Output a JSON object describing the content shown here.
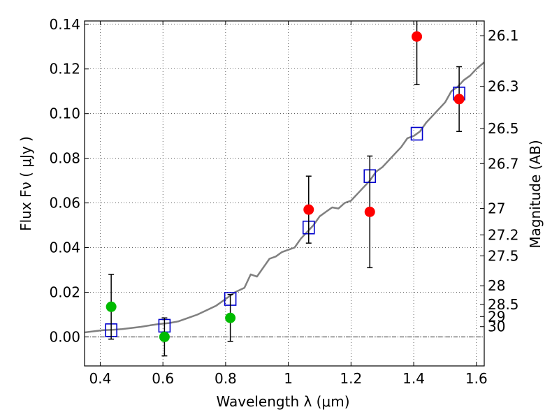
{
  "chart_data": {
    "type": "scatter",
    "xlabel": "Wavelength  λ (μm)",
    "ylabel": "Flux  Fν  ( μJy )",
    "y2label": "Magnitude (AB)",
    "xlim": [
      0.35,
      1.625
    ],
    "ylim": [
      -0.013,
      0.1415
    ],
    "x_ticks": [
      {
        "value": 0.4,
        "label": "0.4"
      },
      {
        "value": 0.6,
        "label": "0.6"
      },
      {
        "value": 0.8,
        "label": "0.8"
      },
      {
        "value": 1.0,
        "label": "1"
      },
      {
        "value": 1.2,
        "label": "1.2"
      },
      {
        "value": 1.4,
        "label": "1.4"
      },
      {
        "value": 1.6,
        "label": "1.6"
      }
    ],
    "y_ticks": [
      {
        "value": 0.0,
        "label": "0.00"
      },
      {
        "value": 0.02,
        "label": "0.02"
      },
      {
        "value": 0.04,
        "label": "0.04"
      },
      {
        "value": 0.06,
        "label": "0.06"
      },
      {
        "value": 0.08,
        "label": "0.08"
      },
      {
        "value": 0.1,
        "label": "0.10"
      },
      {
        "value": 0.12,
        "label": "0.12"
      },
      {
        "value": 0.14,
        "label": "0.14"
      }
    ],
    "y2_ticks": [
      {
        "flux": 0.1349,
        "label": "26.1"
      },
      {
        "flux": 0.1122,
        "label": "26.3"
      },
      {
        "flux": 0.0933,
        "label": "26.5"
      },
      {
        "flux": 0.0776,
        "label": "26.7"
      },
      {
        "flux": 0.0575,
        "label": "27"
      },
      {
        "flux": 0.0457,
        "label": "27.2"
      },
      {
        "flux": 0.0363,
        "label": "27.5"
      },
      {
        "flux": 0.0229,
        "label": "28"
      },
      {
        "flux": 0.0145,
        "label": "28.5"
      },
      {
        "flux": 0.0091,
        "label": "29"
      },
      {
        "flux": 0.0046,
        "label": "30"
      }
    ],
    "zero_line": 0.0,
    "grid": true,
    "colors": {
      "sed": "#808080",
      "model_marker": "#0000cc",
      "detection": "#ff0000",
      "nondetection": "#00bb00",
      "errorbar": "#000000"
    },
    "series": [
      {
        "style": "line",
        "x": [
          0.35,
          0.38,
          0.41,
          0.44,
          0.47,
          0.5,
          0.53,
          0.56,
          0.59,
          0.62,
          0.65,
          0.68,
          0.71,
          0.74,
          0.77,
          0.8,
          0.83,
          0.86,
          0.88,
          0.9,
          0.92,
          0.94,
          0.96,
          0.98,
          1.0,
          1.02,
          1.04,
          1.06,
          1.08,
          1.1,
          1.12,
          1.14,
          1.16,
          1.18,
          1.2,
          1.22,
          1.24,
          1.26,
          1.28,
          1.3,
          1.32,
          1.34,
          1.36,
          1.38,
          1.4,
          1.42,
          1.44,
          1.46,
          1.48,
          1.5,
          1.52,
          1.54,
          1.56,
          1.58,
          1.6,
          1.625
        ],
        "y": [
          0.002,
          0.0025,
          0.003,
          0.0032,
          0.0035,
          0.004,
          0.0045,
          0.0052,
          0.0058,
          0.0062,
          0.007,
          0.0085,
          0.01,
          0.012,
          0.014,
          0.017,
          0.02,
          0.022,
          0.028,
          0.027,
          0.031,
          0.035,
          0.036,
          0.038,
          0.039,
          0.04,
          0.044,
          0.047,
          0.05,
          0.054,
          0.056,
          0.058,
          0.0575,
          0.06,
          0.061,
          0.064,
          0.067,
          0.07,
          0.074,
          0.076,
          0.079,
          0.082,
          0.085,
          0.089,
          0.09,
          0.092,
          0.096,
          0.099,
          0.102,
          0.105,
          0.11,
          0.112,
          0.115,
          0.117,
          0.12,
          0.123
        ]
      },
      {
        "style": "open-square",
        "x": [
          0.435,
          0.605,
          0.815,
          1.065,
          1.26,
          1.41,
          1.545
        ],
        "y": [
          0.003,
          0.005,
          0.017,
          0.049,
          0.072,
          0.091,
          0.109
        ]
      },
      {
        "style": "filled-circle",
        "x": [
          0.435,
          0.605,
          0.815
        ],
        "y": [
          0.0135,
          0.0,
          0.0085
        ],
        "err": [
          0.0145,
          0.0085,
          0.0105
        ]
      },
      {
        "style": "filled-circle",
        "x": [
          1.065,
          1.26,
          1.41,
          1.545
        ],
        "y": [
          0.057,
          0.056,
          0.1345,
          0.1065
        ],
        "err": [
          0.015,
          0.025,
          0.0215,
          0.0145
        ]
      }
    ]
  }
}
